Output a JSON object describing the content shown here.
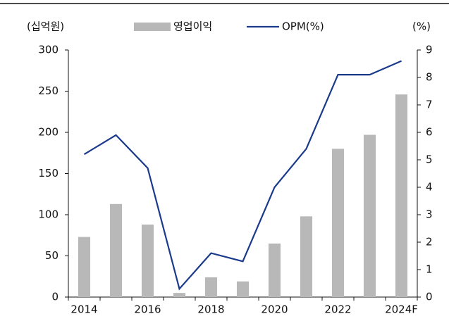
{
  "chart_data": {
    "type": "bar_line",
    "y_label": "(십억원)",
    "y2_label": "(%)",
    "categories": [
      "2014",
      null,
      "2016",
      null,
      "2018",
      null,
      "2020",
      null,
      "2022",
      null,
      "2024F"
    ],
    "series": [
      {
        "name": "영업이익",
        "type": "bar",
        "color": "#b8b8b8",
        "values": [
          73,
          113,
          88,
          5,
          24,
          19,
          65,
          98,
          180,
          197,
          246
        ]
      },
      {
        "name": "OPM(%)",
        "type": "line",
        "axis": "y2",
        "color": "#1a3a8c",
        "values": [
          5.2,
          5.9,
          4.7,
          0.3,
          1.6,
          1.3,
          4.0,
          5.4,
          8.1,
          8.1,
          8.6
        ]
      }
    ],
    "ylim": [
      0,
      300
    ],
    "yticks": [
      0,
      50,
      100,
      150,
      200,
      250,
      300
    ],
    "y2lim": [
      0,
      9
    ],
    "y2ticks": [
      0,
      1,
      2,
      3,
      4,
      5,
      6,
      7,
      8,
      9
    ]
  }
}
